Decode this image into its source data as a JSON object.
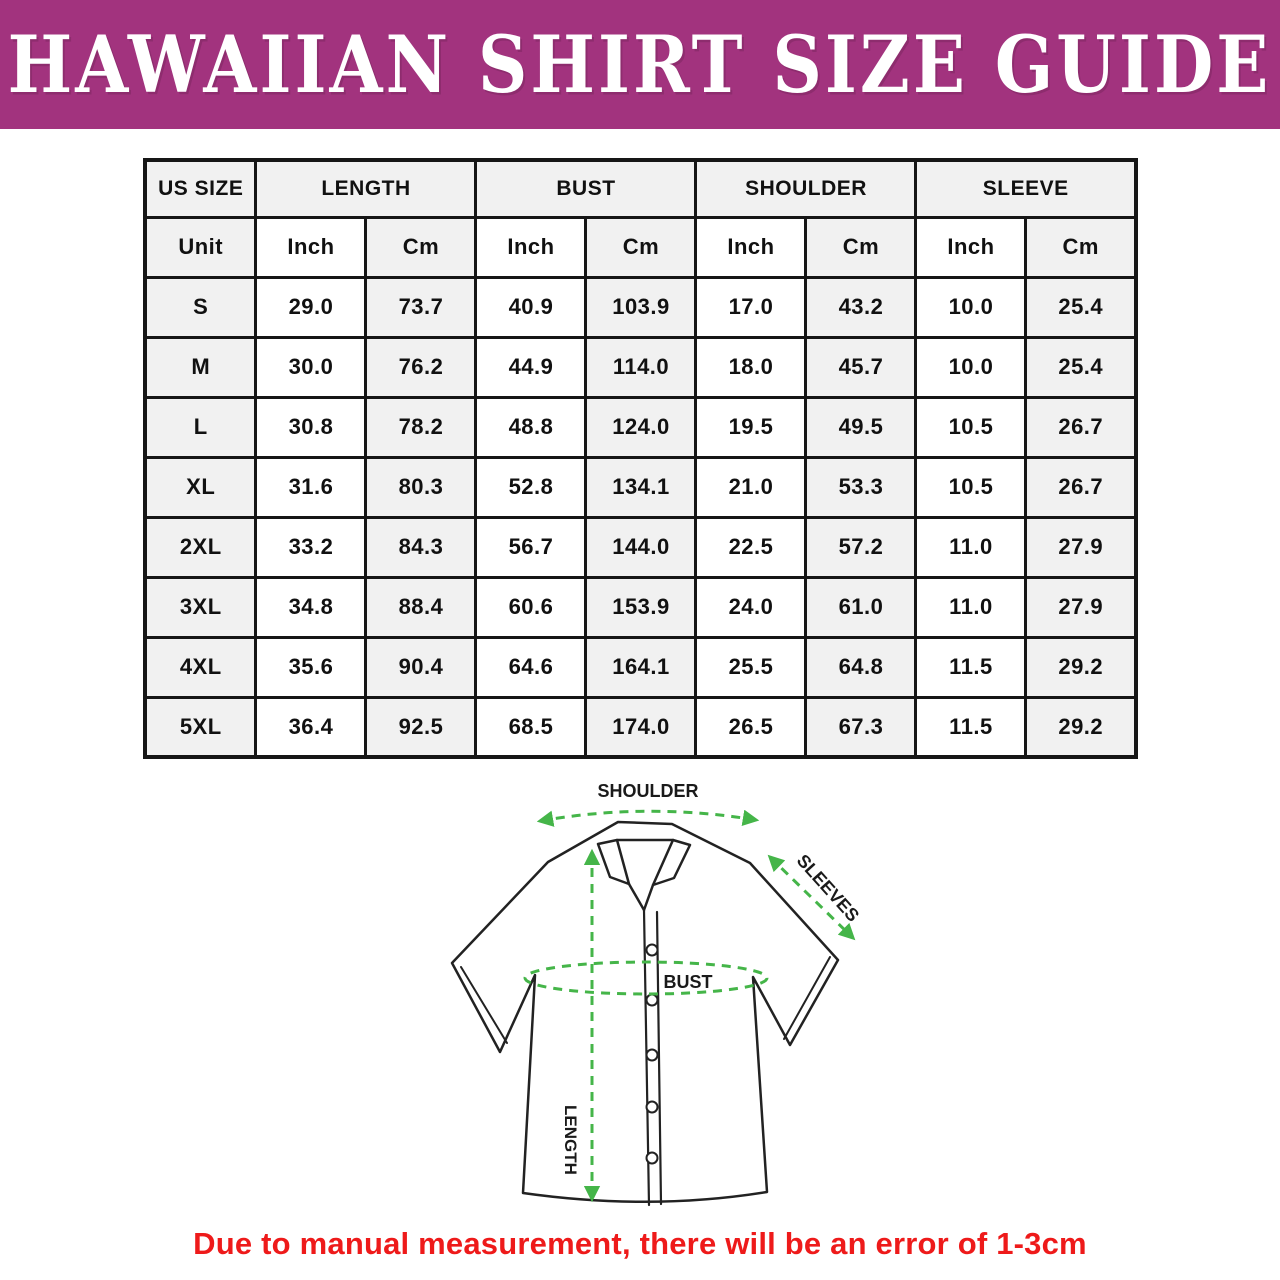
{
  "banner": {
    "title": "HAWAIIAN SHIRT SIZE GUIDE",
    "background_color": "#a2337e",
    "text_color": "#ffffff"
  },
  "table": {
    "column_groups": [
      "US SIZE",
      "LENGTH",
      "BUST",
      "SHOULDER",
      "SLEEVE"
    ],
    "unit_row": [
      "Unit",
      "Inch",
      "Cm",
      "Inch",
      "Cm",
      "Inch",
      "Cm",
      "Inch",
      "Cm"
    ],
    "rows": [
      [
        "S",
        "29.0",
        "73.7",
        "40.9",
        "103.9",
        "17.0",
        "43.2",
        "10.0",
        "25.4"
      ],
      [
        "M",
        "30.0",
        "76.2",
        "44.9",
        "114.0",
        "18.0",
        "45.7",
        "10.0",
        "25.4"
      ],
      [
        "L",
        "30.8",
        "78.2",
        "48.8",
        "124.0",
        "19.5",
        "49.5",
        "10.5",
        "26.7"
      ],
      [
        "XL",
        "31.6",
        "80.3",
        "52.8",
        "134.1",
        "21.0",
        "53.3",
        "10.5",
        "26.7"
      ],
      [
        "2XL",
        "33.2",
        "84.3",
        "56.7",
        "144.0",
        "22.5",
        "57.2",
        "11.0",
        "27.9"
      ],
      [
        "3XL",
        "34.8",
        "88.4",
        "60.6",
        "153.9",
        "24.0",
        "61.0",
        "11.0",
        "27.9"
      ],
      [
        "4XL",
        "35.6",
        "90.4",
        "64.6",
        "164.1",
        "25.5",
        "64.8",
        "11.5",
        "29.2"
      ],
      [
        "5XL",
        "36.4",
        "92.5",
        "68.5",
        "174.0",
        "26.5",
        "67.3",
        "11.5",
        "29.2"
      ]
    ]
  },
  "diagram": {
    "shoulder_label": "SHOULDER",
    "sleeves_label": "SLEEVES",
    "bust_label": "BUST",
    "length_label": "LENGTH",
    "arrow_color": "#45b549"
  },
  "footnote": {
    "text": "Due to manual measurement, there will be an error of 1-3cm",
    "color": "#ee1a1a"
  }
}
